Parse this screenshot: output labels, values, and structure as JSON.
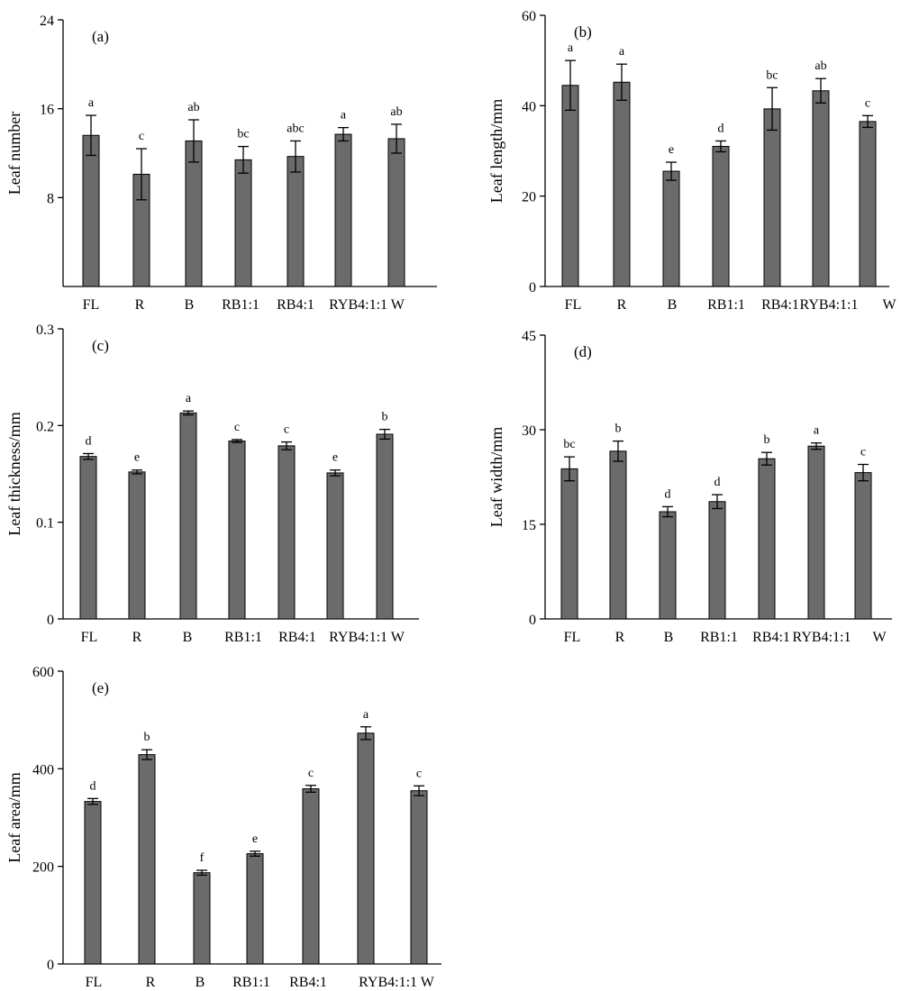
{
  "chart_data": [
    {
      "type": "bar",
      "panel_label": "(a)",
      "ylabel": "Leaf number",
      "categories": [
        "FL",
        "R",
        "B",
        "RB1:1",
        "RB4:1",
        "RYB4:1:1",
        "W"
      ],
      "category_tick_labels": [
        "FL",
        "R",
        "B",
        "RB1:1",
        "RB4:1",
        "RYB4:1:1 W"
      ],
      "values": [
        13.6,
        10.1,
        13.1,
        11.4,
        11.7,
        13.7,
        13.3
      ],
      "errors": [
        1.8,
        2.3,
        1.9,
        1.2,
        1.4,
        0.6,
        1.3
      ],
      "significance": [
        "a",
        "c",
        "ab",
        "bc",
        "abc",
        "a",
        "ab"
      ],
      "ylim": [
        0,
        24
      ],
      "yticks": [
        8,
        16,
        24
      ],
      "ytick_labels": [
        "8",
        "16",
        "24"
      ]
    },
    {
      "type": "bar",
      "panel_label": "(b)",
      "ylabel": "Leaf length/mm",
      "categories": [
        "FL",
        "R",
        "B",
        "RB1:1",
        "RB4:1",
        "RYB4:1:1",
        "W"
      ],
      "category_tick_labels": [
        "FL",
        "R",
        "B",
        "RB1:1",
        "RB4:1",
        "RYB4:1:1",
        "W"
      ],
      "values": [
        44.5,
        45.2,
        25.5,
        31.0,
        39.3,
        43.3,
        36.5
      ],
      "errors": [
        5.5,
        4.0,
        2.0,
        1.2,
        4.7,
        2.7,
        1.3
      ],
      "significance": [
        "a",
        "a",
        "e",
        "d",
        "bc",
        "ab",
        "c"
      ],
      "ylim": [
        0,
        60
      ],
      "yticks": [
        0,
        20,
        40,
        60
      ],
      "ytick_labels": [
        "0",
        "20",
        "40",
        "60"
      ]
    },
    {
      "type": "bar",
      "panel_label": "(c)",
      "ylabel": "Leaf thickness/mm",
      "categories": [
        "FL",
        "R",
        "B",
        "RB1:1",
        "RB4:1",
        "RYB4:1:1",
        "W"
      ],
      "category_tick_labels": [
        "FL",
        "R",
        "B",
        "RB1:1",
        "RB4:1",
        "RYB4:1:1 W"
      ],
      "values": [
        0.168,
        0.152,
        0.213,
        0.184,
        0.179,
        0.151,
        0.191
      ],
      "errors": [
        0.003,
        0.002,
        0.002,
        0.0015,
        0.004,
        0.003,
        0.005
      ],
      "significance": [
        "d",
        "e",
        "a",
        "c",
        "c",
        "e",
        "b"
      ],
      "ylim": [
        0,
        0.3
      ],
      "yticks": [
        0,
        0.1,
        0.2,
        0.3
      ],
      "ytick_labels": [
        "0",
        "0.1",
        "0.2",
        "0.3"
      ]
    },
    {
      "type": "bar",
      "panel_label": "(d)",
      "ylabel": "Leaf width/mm",
      "categories": [
        "FL",
        "R",
        "B",
        "RB1:1",
        "RB4:1",
        "RYB4:1:1",
        "W"
      ],
      "category_tick_labels": [
        "FL",
        "R",
        "B",
        "RB1:1",
        "RB4:1",
        "RYB4:1:1",
        "W"
      ],
      "values": [
        23.8,
        26.6,
        17.0,
        18.6,
        25.4,
        27.4,
        23.2
      ],
      "errors": [
        1.9,
        1.6,
        0.8,
        1.1,
        1.0,
        0.5,
        1.3
      ],
      "significance": [
        "bc",
        "b",
        "d",
        "d",
        "b",
        "a",
        "c"
      ],
      "ylim": [
        0,
        45
      ],
      "yticks": [
        0,
        15,
        30,
        45
      ],
      "ytick_labels": [
        "0",
        "15",
        "30",
        "45"
      ]
    },
    {
      "type": "bar",
      "panel_label": "(e)",
      "ylabel": "Leaf area/mm",
      "categories": [
        "FL",
        "R",
        "B",
        "RB1:1",
        "RB4:1",
        "RYB4:1:1",
        "W"
      ],
      "category_tick_labels": [
        "FL",
        "R",
        "B",
        "RB1:1",
        "RB4:1",
        "RYB4:1:1 W"
      ],
      "values": [
        333,
        429,
        187,
        226,
        359,
        473,
        355
      ],
      "errors": [
        6,
        10,
        5,
        5,
        7,
        13,
        10
      ],
      "significance": [
        "d",
        "b",
        "f",
        "e",
        "c",
        "a",
        "c"
      ],
      "ylim": [
        0,
        600
      ],
      "yticks": [
        0,
        200,
        400,
        600
      ],
      "ytick_labels": [
        "0",
        "200",
        "400",
        "600"
      ]
    }
  ],
  "colors": {
    "bar_fill": "#6b6b6b",
    "bar_stroke": "#000000",
    "axis": "#000000"
  }
}
